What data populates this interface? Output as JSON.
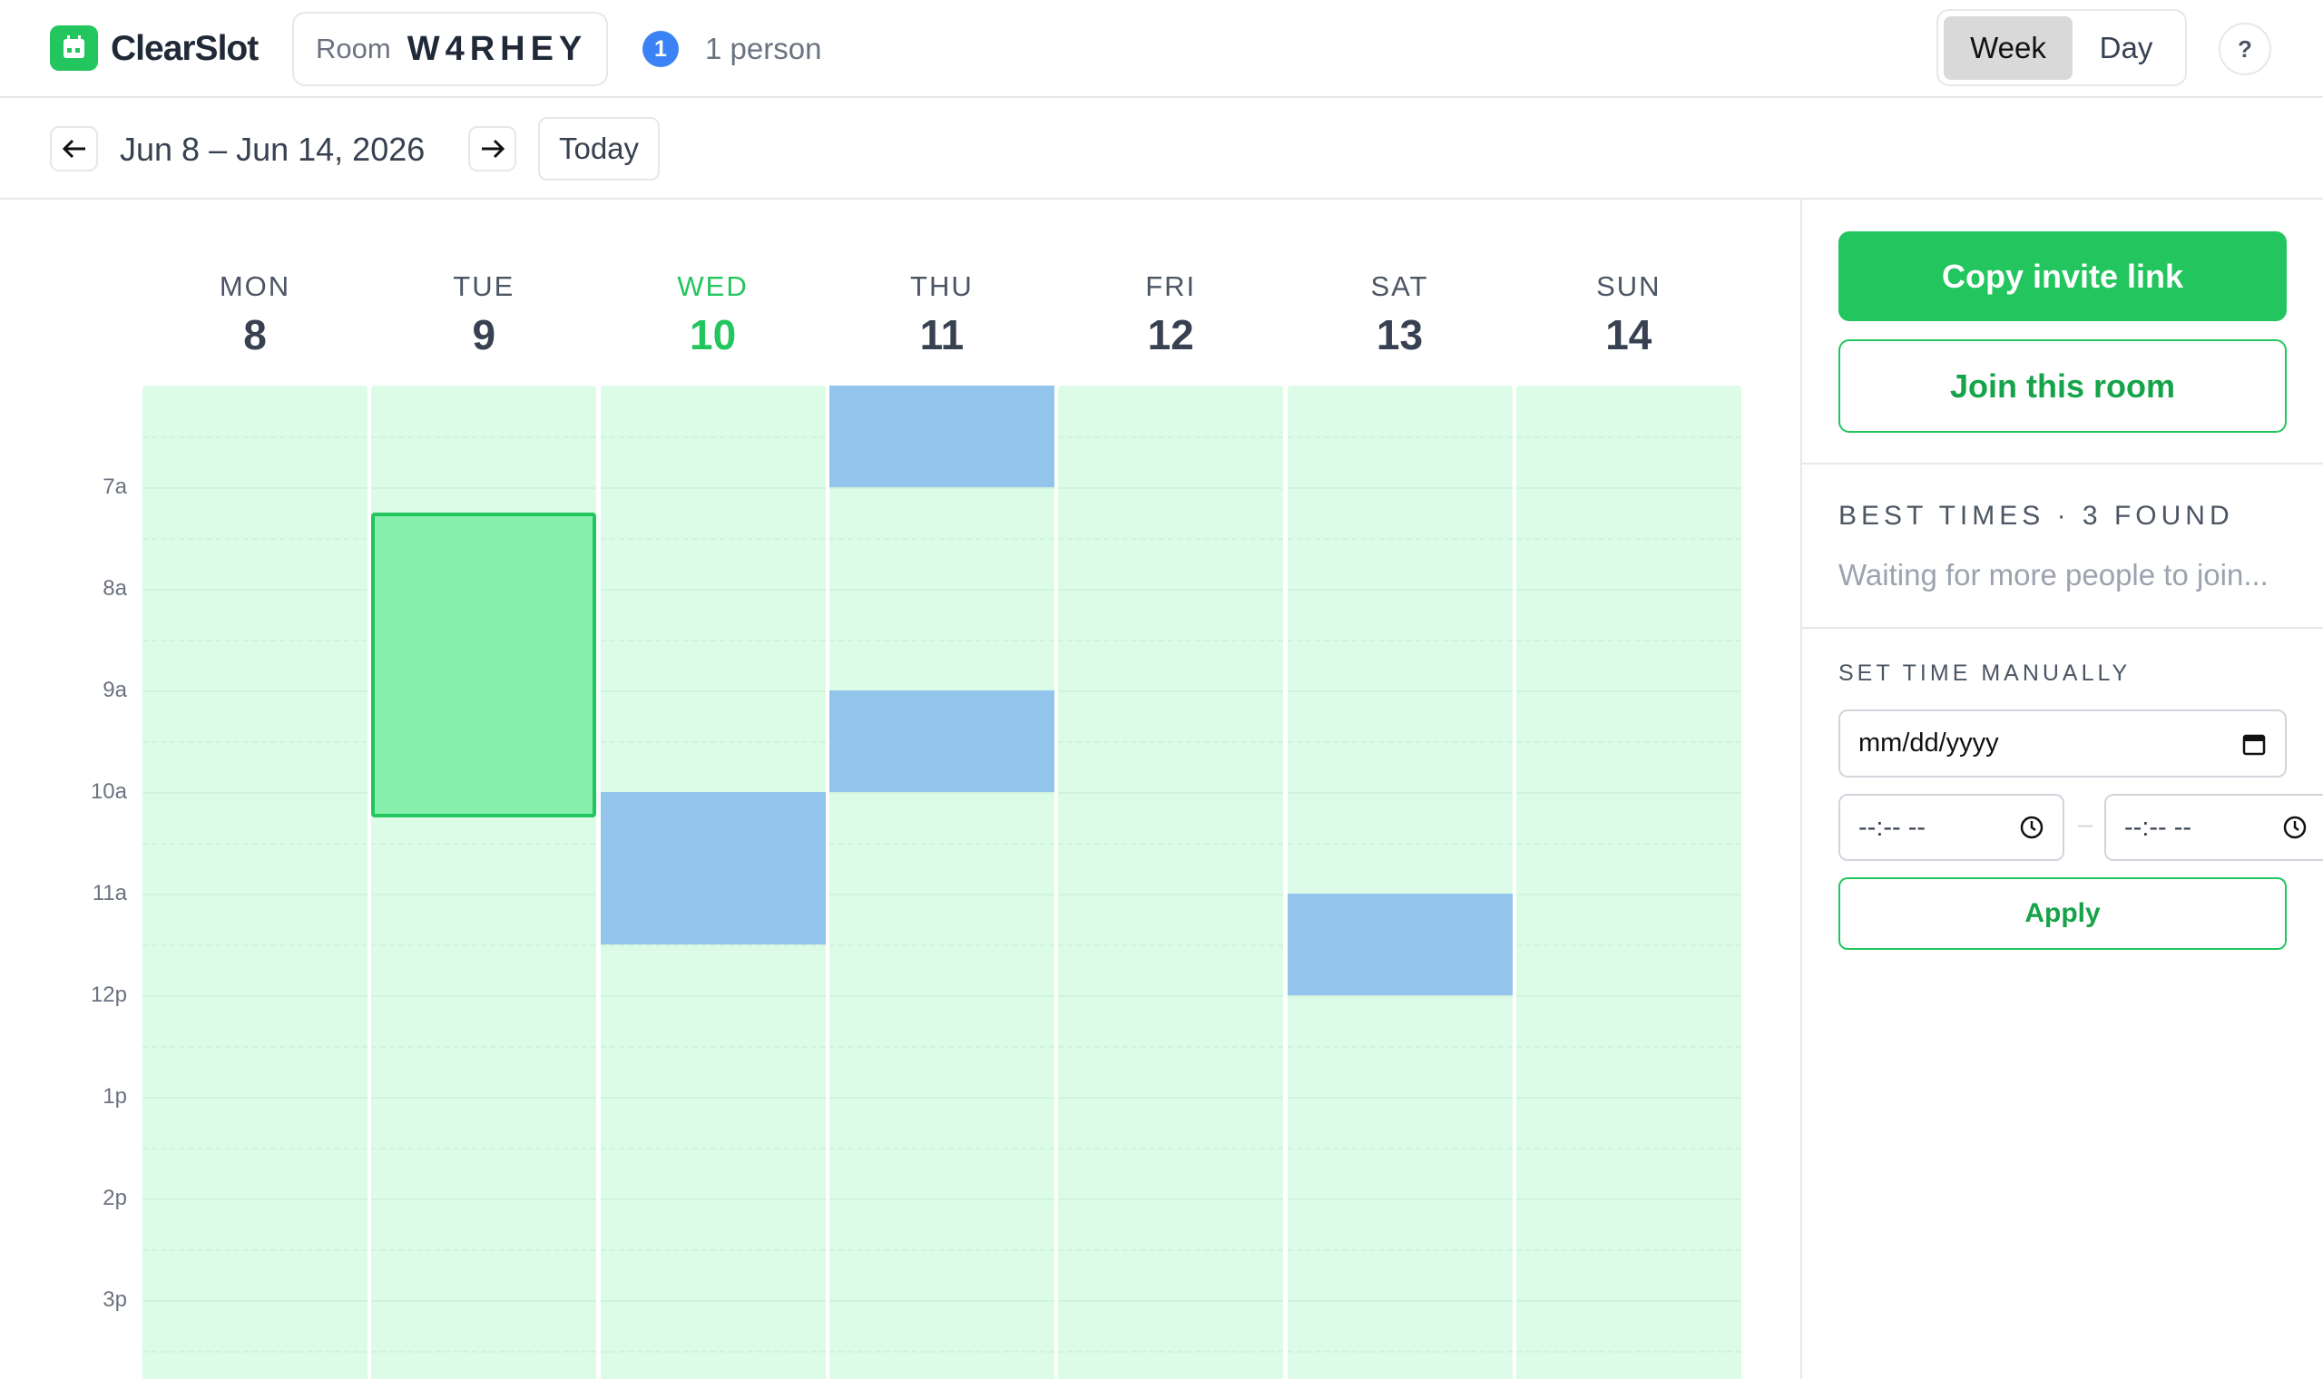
{
  "header": {
    "app_name": "ClearSlot",
    "room_label": "Room",
    "room_code": "W4RHEY",
    "participant_count": 1,
    "participant_text": "1 person",
    "view_options": [
      "Week",
      "Day"
    ],
    "active_view": "Week",
    "help": "?"
  },
  "nav": {
    "date_range": "Jun 8 – Jun 14, 2026",
    "today": "Today"
  },
  "calendar": {
    "days": [
      {
        "name": "MON",
        "date": 8
      },
      {
        "name": "TUE",
        "date": 9
      },
      {
        "name": "WED",
        "date": 10
      },
      {
        "name": "THU",
        "date": 11
      },
      {
        "name": "FRI",
        "date": 12
      },
      {
        "name": "SAT",
        "date": 13
      },
      {
        "name": "SUN",
        "date": 14
      }
    ],
    "today_index": 2,
    "hour_range": [
      6,
      16
    ],
    "hour_labels": [
      {
        "value": 7,
        "label": "7a"
      },
      {
        "value": 8,
        "label": "8a"
      },
      {
        "value": 9,
        "label": "9a"
      },
      {
        "value": 10,
        "label": "10a"
      },
      {
        "value": 11,
        "label": "11a"
      },
      {
        "value": 12,
        "label": "12p"
      },
      {
        "value": 13,
        "label": "1p"
      },
      {
        "value": 14,
        "label": "2p"
      },
      {
        "value": 15,
        "label": "3p"
      }
    ],
    "busy": [
      {
        "day": 3,
        "start": 6,
        "end": 7
      },
      {
        "day": 3,
        "start": 9,
        "end": 10
      },
      {
        "day": 2,
        "start": 10,
        "end": 11.5
      },
      {
        "day": 5,
        "start": 11,
        "end": 12
      }
    ],
    "selection": {
      "day": 1,
      "start": 7.25,
      "end": 10.25
    }
  },
  "sidebar": {
    "copy_button": "Copy invite link",
    "join_button": "Join this room",
    "best_times_title": "BEST TIMES · 3 FOUND",
    "best_times_status": "Waiting for more people to join...",
    "manual_title": "SET TIME MANUALLY",
    "date_placeholder": "mm/dd/yyyy",
    "time_placeholder_start": "--:-- --",
    "time_separator": "–",
    "time_placeholder_end": "--:-- --",
    "apply_button": "Apply"
  }
}
